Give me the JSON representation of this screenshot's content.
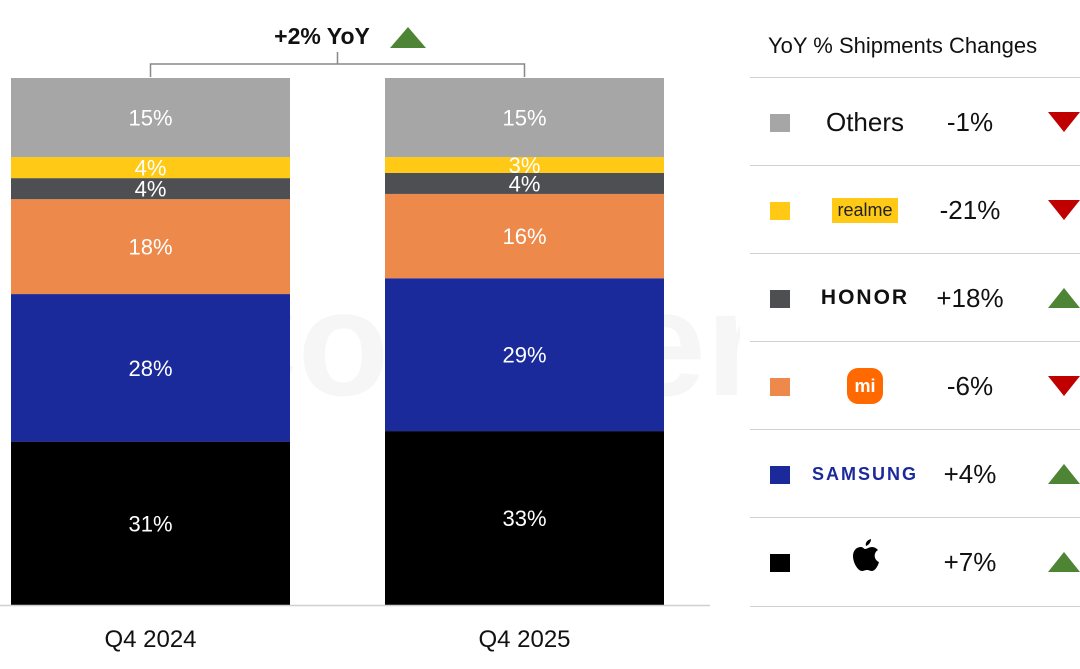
{
  "chart_data": {
    "type": "bar",
    "stacked": true,
    "categories": [
      "Q4 2024",
      "Q4 2025"
    ],
    "series": [
      {
        "name": "Apple",
        "color": "#000000",
        "values": [
          31,
          33
        ]
      },
      {
        "name": "Samsung",
        "color": "#1a2a9b",
        "values": [
          28,
          29
        ]
      },
      {
        "name": "Xiaomi",
        "color": "#ed8a4b",
        "values": [
          18,
          16
        ]
      },
      {
        "name": "HONOR",
        "color": "#4d4f52",
        "values": [
          4,
          4
        ]
      },
      {
        "name": "realme",
        "color": "#ffc915",
        "values": [
          4,
          3
        ]
      },
      {
        "name": "Others",
        "color": "#a6a6a6",
        "values": [
          15,
          15
        ]
      }
    ],
    "value_unit": "%",
    "ylim": [
      0,
      100
    ],
    "grid": false,
    "annotation": {
      "text": "+2% YoY",
      "direction": "up",
      "color": "#4e8535"
    },
    "watermark": "Counterpoint"
  },
  "legend": {
    "title": "YoY % Shipments Changes",
    "placement": "right",
    "rows": [
      {
        "brand": "Others",
        "style": "text",
        "color": "#a6a6a6",
        "change": "-1%",
        "direction": "down"
      },
      {
        "brand": "realme",
        "style": "realme",
        "color": "#ffc915",
        "change": "-21%",
        "direction": "down"
      },
      {
        "brand": "HONOR",
        "style": "honor",
        "color": "#4d4f52",
        "change": "+18%",
        "direction": "up"
      },
      {
        "brand": "mi",
        "style": "mi",
        "color": "#ed8a4b",
        "change": "-6%",
        "direction": "down"
      },
      {
        "brand": "SAMSUNG",
        "style": "samsung",
        "color": "#1a2a9b",
        "change": "+4%",
        "direction": "up"
      },
      {
        "brand": "",
        "style": "apple",
        "color": "#000000",
        "change": "+7%",
        "direction": "up"
      }
    ]
  }
}
